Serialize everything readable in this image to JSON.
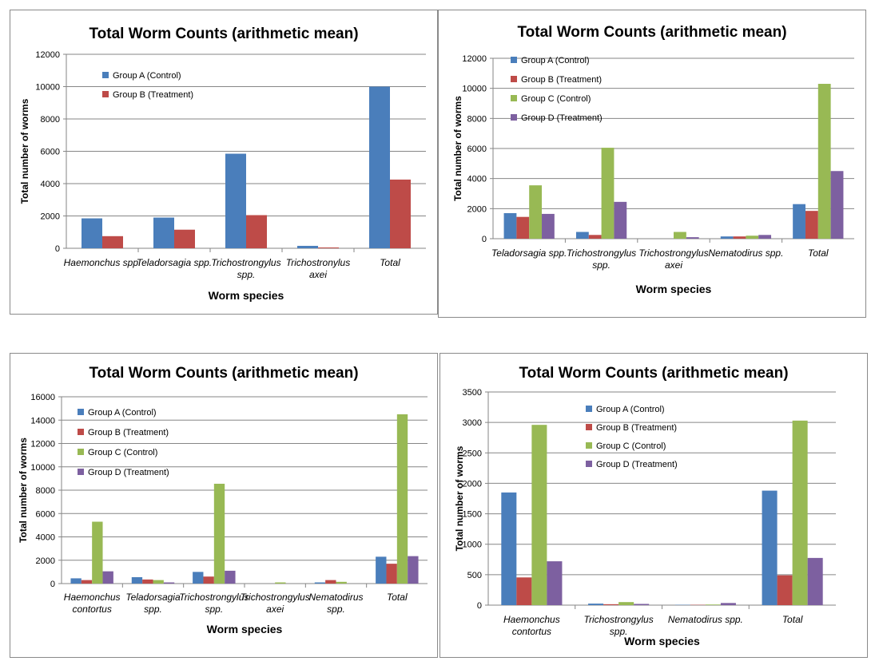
{
  "colors": {
    "group_a": "#4a7ebb",
    "group_b": "#be4b48",
    "group_c": "#98b954",
    "group_d": "#7d60a0",
    "grid": "#868686",
    "axis": "#868686"
  },
  "chart_data": [
    {
      "type": "bar",
      "title": "Total Worm Counts (arithmetic mean)",
      "xlabel": "Worm species",
      "ylabel": "Total number of worms",
      "ylim": [
        0,
        12000
      ],
      "yticks": [
        0,
        2000,
        4000,
        6000,
        8000,
        10000,
        12000
      ],
      "grid": true,
      "legend_position": "top-left",
      "categories": [
        [
          "Haemonchus spp."
        ],
        [
          "Teladorsagia spp."
        ],
        [
          "Trichostrongylus",
          "spp."
        ],
        [
          "Trichostronylus",
          "axei"
        ],
        [
          "Total"
        ]
      ],
      "series": [
        {
          "name": "Group A (Control)",
          "color": "group_a",
          "values": [
            1850,
            1900,
            5850,
            150,
            10000
          ]
        },
        {
          "name": "Group B (Treatment)",
          "color": "group_b",
          "values": [
            750,
            1150,
            2050,
            50,
            4250
          ]
        }
      ]
    },
    {
      "type": "bar",
      "title": "Total Worm Counts (arithmetic mean)",
      "xlabel": "Worm species",
      "ylabel": "Total number of worms",
      "ylim": [
        0,
        12000
      ],
      "yticks": [
        0,
        2000,
        4000,
        6000,
        8000,
        10000,
        12000
      ],
      "grid": true,
      "legend_position": "top-left",
      "categories": [
        [
          "Teladorsagia spp."
        ],
        [
          "Trichostrongylus",
          "spp."
        ],
        [
          "Trichostrongylus",
          "axei"
        ],
        [
          "Nematodirus spp."
        ],
        [
          "Total"
        ]
      ],
      "series": [
        {
          "name": "Group A (Control)",
          "color": "group_a",
          "values": [
            1700,
            450,
            0,
            150,
            2300
          ]
        },
        {
          "name": "Group B (Treatment)",
          "color": "group_b",
          "values": [
            1450,
            250,
            0,
            150,
            1850
          ]
        },
        {
          "name": "Group C (Control)",
          "color": "group_c",
          "values": [
            3550,
            6050,
            450,
            200,
            10300
          ]
        },
        {
          "name": "Group D (Treatment)",
          "color": "group_d",
          "values": [
            1650,
            2450,
            100,
            250,
            4500
          ]
        }
      ]
    },
    {
      "type": "bar",
      "title": "Total Worm Counts (arithmetic mean)",
      "xlabel": "Worm species",
      "ylabel": "Total number of worms",
      "ylim": [
        0,
        16000
      ],
      "yticks": [
        0,
        2000,
        4000,
        6000,
        8000,
        10000,
        12000,
        14000,
        16000
      ],
      "grid": true,
      "legend_position": "top-left",
      "categories": [
        [
          "Haemonchus",
          "contortus"
        ],
        [
          "Teladorsagia",
          "spp."
        ],
        [
          "Trichostrongylus",
          "spp."
        ],
        [
          "Trichostrongylus",
          "axei"
        ],
        [
          "Nematodirus",
          "spp."
        ],
        [
          "Total"
        ]
      ],
      "series": [
        {
          "name": "Group A (Control)",
          "color": "group_a",
          "values": [
            450,
            550,
            1000,
            0,
            100,
            2300
          ]
        },
        {
          "name": "Group B (Treatment)",
          "color": "group_b",
          "values": [
            300,
            350,
            600,
            0,
            300,
            1700
          ]
        },
        {
          "name": "Group C (Control)",
          "color": "group_c",
          "values": [
            5300,
            300,
            8550,
            100,
            150,
            14500
          ]
        },
        {
          "name": "Group D (Treatment)",
          "color": "group_d",
          "values": [
            1050,
            100,
            1100,
            0,
            0,
            2350
          ]
        }
      ]
    },
    {
      "type": "bar",
      "title": "Total Worm Counts (arithmetic mean)",
      "xlabel": "Worm species",
      "ylabel": "Total number of worms",
      "ylim": [
        0,
        3500
      ],
      "yticks": [
        0,
        500,
        1000,
        1500,
        2000,
        2500,
        3000,
        3500
      ],
      "grid": true,
      "legend_position": "top-center",
      "categories": [
        [
          "Haemonchus",
          "contortus"
        ],
        [
          "Trichostrongylus",
          "spp."
        ],
        [
          "Nematodirus spp."
        ],
        [
          "Total"
        ]
      ],
      "series": [
        {
          "name": "Group A (Control)",
          "color": "group_a",
          "values": [
            1850,
            25,
            5,
            1880
          ]
        },
        {
          "name": "Group B (Treatment)",
          "color": "group_b",
          "values": [
            455,
            15,
            5,
            490
          ]
        },
        {
          "name": "Group C (Control)",
          "color": "group_c",
          "values": [
            2960,
            50,
            10,
            3030
          ]
        },
        {
          "name": "Group D (Treatment)",
          "color": "group_d",
          "values": [
            720,
            20,
            35,
            775
          ]
        }
      ]
    }
  ]
}
